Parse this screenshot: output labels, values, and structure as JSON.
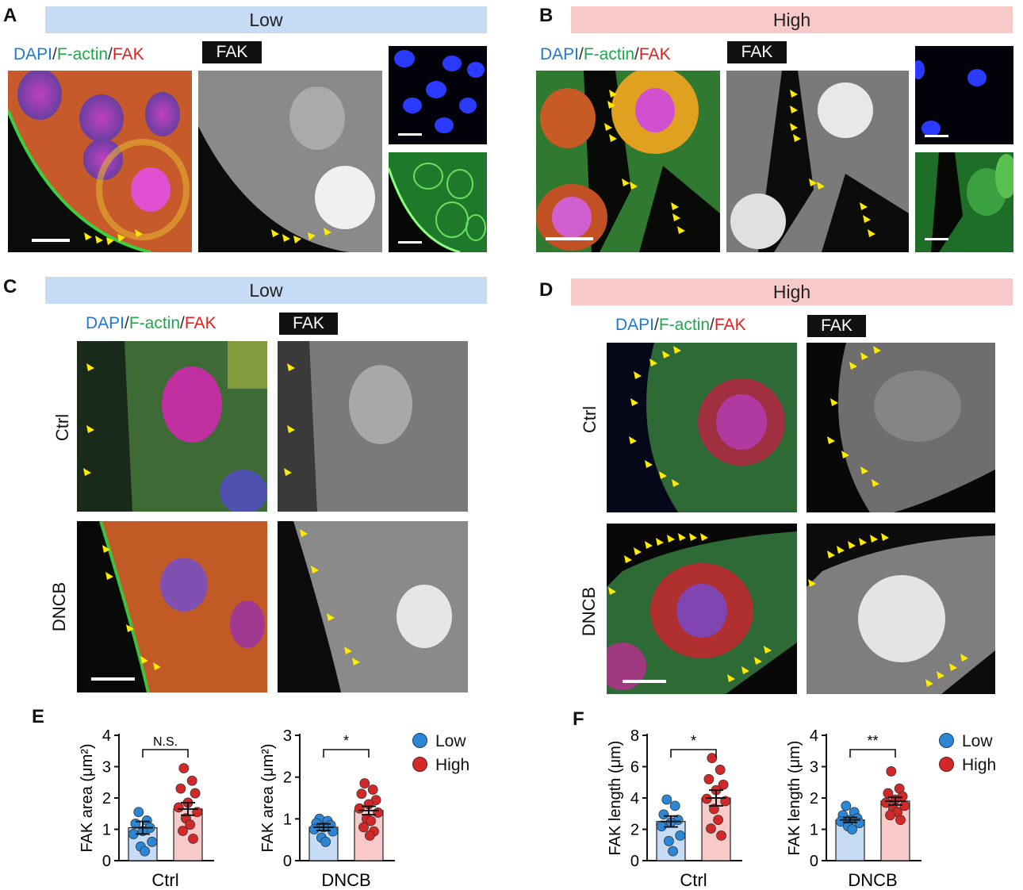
{
  "panels": {
    "A": {
      "letter": "A",
      "banner": "Low",
      "stain": {
        "dapi": "DAPI",
        "sep": "/",
        "actin": "F-actin",
        "fak": "FAK"
      },
      "fak_label": "FAK"
    },
    "B": {
      "letter": "B",
      "banner": "High",
      "stain": {
        "dapi": "DAPI",
        "sep": "/",
        "actin": "F-actin",
        "fak": "FAK"
      },
      "fak_label": "FAK"
    },
    "C": {
      "letter": "C",
      "banner": "Low",
      "stain": {
        "dapi": "DAPI",
        "sep": "/",
        "actin": "F-actin",
        "fak": "FAK"
      },
      "fak_label": "FAK",
      "rows": [
        "Ctrl",
        "DNCB"
      ]
    },
    "D": {
      "letter": "D",
      "banner": "High",
      "stain": {
        "dapi": "DAPI",
        "sep": "/",
        "actin": "F-actin",
        "fak": "FAK"
      },
      "fak_label": "FAK",
      "rows": [
        "Ctrl",
        "DNCB"
      ]
    },
    "E": {
      "letter": "E"
    },
    "F": {
      "letter": "F"
    }
  },
  "colors": {
    "low_fill": "#c6dbf4",
    "high_fill": "#f8c9c9",
    "low_dot": "#2b86d6",
    "high_dot": "#d42828",
    "arrow": "#ffea00"
  },
  "legend": {
    "low": "Low",
    "high": "High"
  },
  "chart_data": [
    {
      "type": "bar",
      "panel": "E",
      "ylabel": "FAK area (μm²)",
      "xlabel": "Ctrl",
      "ylim": [
        0,
        4
      ],
      "yticks": [
        0,
        1,
        2,
        3,
        4
      ],
      "significance": "N.S.",
      "series": [
        {
          "name": "Low",
          "mean": 1.05,
          "sem": 0.2,
          "points": [
            1.55,
            1.28,
            1.18,
            1.05,
            0.95,
            0.85,
            0.6,
            0.45,
            0.3
          ]
        },
        {
          "name": "High",
          "mean": 1.65,
          "sem": 0.2,
          "points": [
            2.95,
            2.55,
            2.3,
            2.15,
            1.85,
            1.7,
            1.55,
            1.35,
            1.15,
            0.95,
            0.7
          ]
        }
      ]
    },
    {
      "type": "bar",
      "panel": "E",
      "ylabel": "FAK area (μm²)",
      "xlabel": "DNCB",
      "ylim": [
        0,
        3
      ],
      "yticks": [
        0,
        1,
        2,
        3
      ],
      "significance": "*",
      "series": [
        {
          "name": "Low",
          "mean": 0.8,
          "sem": 0.08,
          "points": [
            1.0,
            0.95,
            0.9,
            0.85,
            0.8,
            0.75,
            0.7,
            0.55,
            0.45
          ]
        },
        {
          "name": "High",
          "mean": 1.2,
          "sem": 0.1,
          "points": [
            1.85,
            1.7,
            1.6,
            1.45,
            1.35,
            1.25,
            1.15,
            1.0,
            0.95,
            0.8,
            0.7,
            0.6
          ]
        }
      ]
    },
    {
      "type": "bar",
      "panel": "F",
      "ylabel": "FAK length (μm)",
      "xlabel": "Ctrl",
      "ylim": [
        0,
        8
      ],
      "yticks": [
        0,
        2,
        4,
        6,
        8
      ],
      "significance": "*",
      "series": [
        {
          "name": "Low",
          "mean": 2.5,
          "sem": 0.35,
          "points": [
            3.9,
            3.5,
            2.95,
            2.6,
            2.45,
            2.2,
            1.6,
            1.25,
            0.6
          ]
        },
        {
          "name": "High",
          "mean": 4.0,
          "sem": 0.5,
          "points": [
            6.55,
            5.8,
            5.2,
            4.85,
            4.5,
            3.95,
            3.8,
            3.3,
            2.6,
            2.05,
            1.6
          ]
        }
      ]
    },
    {
      "type": "bar",
      "panel": "F",
      "ylabel": "FAK length (μm)",
      "xlabel": "DNCB",
      "ylim": [
        0,
        4
      ],
      "yticks": [
        0,
        1,
        2,
        3,
        4
      ],
      "significance": "**",
      "series": [
        {
          "name": "Low",
          "mean": 1.3,
          "sem": 0.08,
          "points": [
            1.75,
            1.55,
            1.45,
            1.35,
            1.3,
            1.25,
            1.2,
            1.1,
            1.0
          ]
        },
        {
          "name": "High",
          "mean": 1.9,
          "sem": 0.12,
          "points": [
            2.85,
            2.3,
            2.15,
            2.05,
            1.95,
            1.85,
            1.75,
            1.65,
            1.55,
            1.45,
            1.3
          ]
        }
      ]
    }
  ]
}
